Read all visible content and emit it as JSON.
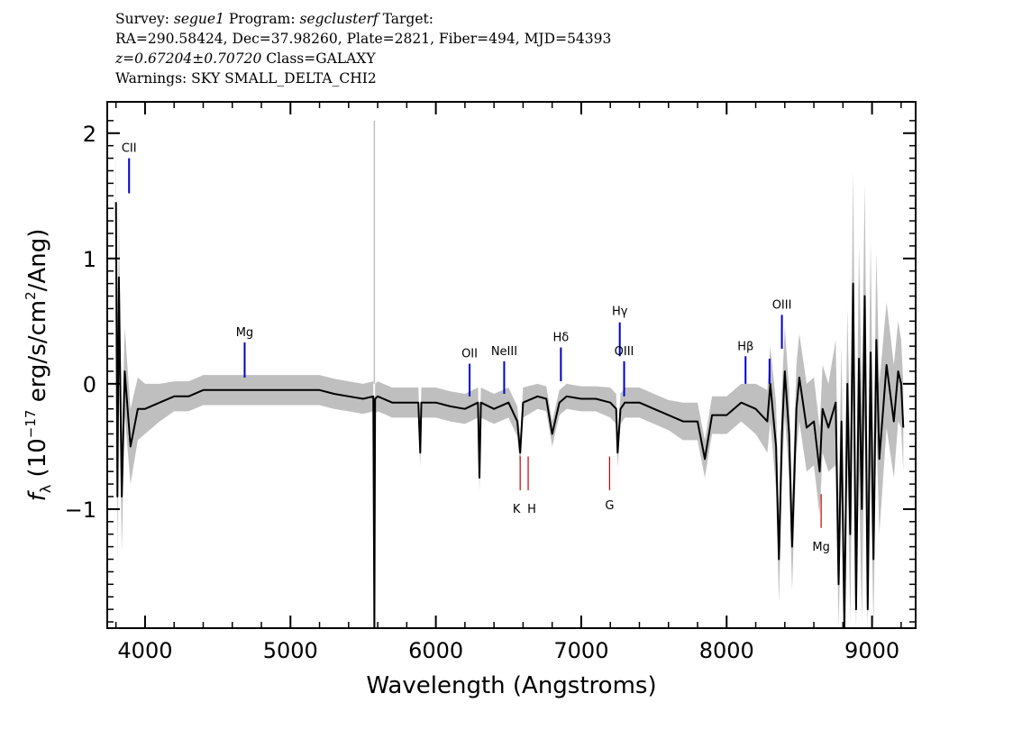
{
  "header": {
    "survey_key": "Survey:",
    "survey": "segue1",
    "program_key": "Program:",
    "program": "segclusterf",
    "target_key": "Target:",
    "coords": "RA=290.58424, Dec=37.98260, Plate=2821, Fiber=494, MJD=54393",
    "redshift": "z=0.67204±0.70720",
    "class_text": "Class=GALAXY",
    "warnings": "Warnings: SKY SMALL_DELTA_CHI2"
  },
  "colors": {
    "flux": "#000000",
    "noise": "#bfbfbf",
    "emission": "#0000cc",
    "absorption": "#cc0000"
  },
  "chart_data": {
    "type": "line",
    "xlabel": "Wavelength (Angstroms)",
    "ylabel": "f_λ (10^-17 erg/s/cm²/Ang)",
    "ylabel_parts": {
      "f": "f",
      "sub": "λ",
      "pre": " (10",
      "exp": "−17",
      "mid": " erg/s/cm",
      "exp2": "2",
      "post": "/Ang)"
    },
    "xlim": [
      3740,
      9300
    ],
    "ylim": [
      -1.95,
      2.25
    ],
    "x_ticks": [
      4000,
      5000,
      6000,
      7000,
      8000,
      9000
    ],
    "y_ticks": [
      -1,
      0,
      1,
      2
    ],
    "x_tick_labels": [
      "4000",
      "5000",
      "6000",
      "7000",
      "8000",
      "9000"
    ],
    "y_tick_labels": [
      "−1",
      "0",
      "1",
      "2"
    ],
    "grid": false,
    "series": [
      {
        "role": "flux",
        "x": [
          3800,
          3810,
          3820,
          3840,
          3860,
          3900,
          3950,
          4000,
          4100,
          4200,
          4300,
          4400,
          4500,
          4600,
          4700,
          4800,
          4900,
          5000,
          5100,
          5200,
          5300,
          5400,
          5500,
          5570,
          5577,
          5582,
          5600,
          5700,
          5800,
          5880,
          5893,
          5900,
          6000,
          6100,
          6200,
          6290,
          6300,
          6310,
          6400,
          6500,
          6560,
          6580,
          6600,
          6700,
          6760,
          6800,
          6850,
          6900,
          7000,
          7100,
          7200,
          7240,
          7250,
          7270,
          7300,
          7400,
          7500,
          7600,
          7700,
          7800,
          7850,
          7900,
          8000,
          8100,
          8200,
          8280,
          8300,
          8340,
          8360,
          8380,
          8400,
          8430,
          8450,
          8480,
          8500,
          8550,
          8600,
          8640,
          8660,
          8700,
          8750,
          8770,
          8790,
          8810,
          8830,
          8850,
          8870,
          8890,
          8910,
          8930,
          8950,
          8970,
          8990,
          9010,
          9030,
          9050,
          9100,
          9150,
          9180,
          9200,
          9215
        ],
        "y": [
          1.45,
          -0.9,
          0.85,
          -0.9,
          0.1,
          -0.5,
          -0.2,
          -0.2,
          -0.15,
          -0.1,
          -0.1,
          -0.05,
          -0.05,
          -0.05,
          -0.05,
          -0.05,
          -0.05,
          -0.05,
          -0.05,
          -0.05,
          -0.08,
          -0.1,
          -0.12,
          -0.1,
          -2.0,
          -0.12,
          -0.1,
          -0.15,
          -0.15,
          -0.15,
          -0.55,
          -0.15,
          -0.15,
          -0.18,
          -0.2,
          -0.15,
          -0.75,
          -0.15,
          -0.2,
          -0.15,
          -0.3,
          -0.55,
          -0.15,
          -0.1,
          -0.12,
          -0.4,
          -0.15,
          -0.1,
          -0.12,
          -0.12,
          -0.15,
          -0.2,
          -0.55,
          -0.2,
          -0.15,
          -0.15,
          -0.2,
          -0.25,
          -0.3,
          -0.3,
          -0.6,
          -0.25,
          -0.25,
          -0.15,
          -0.2,
          -0.3,
          0.0,
          -0.5,
          -1.4,
          -0.4,
          0.1,
          -0.4,
          -1.3,
          -0.2,
          0.05,
          -0.35,
          -0.3,
          -0.7,
          -0.2,
          -0.35,
          -0.15,
          -1.6,
          -0.3,
          -2.0,
          0.0,
          -1.2,
          0.8,
          -1.8,
          0.2,
          -1.0,
          0.7,
          -1.8,
          0.25,
          -1.4,
          0.35,
          -0.6,
          0.15,
          -0.3,
          0.1,
          0.0,
          -0.35
        ]
      }
    ],
    "noise_band_halfwidth": [
      0.55,
      0.55,
      0.55,
      0.45,
      0.35,
      0.3,
      0.25,
      0.2,
      0.15,
      0.12,
      0.12,
      0.12,
      0.12,
      0.12,
      0.12,
      0.12,
      0.12,
      0.12,
      0.12,
      0.12,
      0.12,
      0.12,
      0.12,
      0.12,
      0.12,
      0.12,
      0.12,
      0.12,
      0.12,
      0.12,
      0.12,
      0.12,
      0.12,
      0.12,
      0.12,
      0.12,
      0.12,
      0.12,
      0.12,
      0.12,
      0.12,
      0.12,
      0.12,
      0.1,
      0.1,
      0.1,
      0.1,
      0.1,
      0.1,
      0.1,
      0.12,
      0.12,
      0.12,
      0.12,
      0.12,
      0.12,
      0.12,
      0.12,
      0.15,
      0.15,
      0.15,
      0.15,
      0.15,
      0.15,
      0.2,
      0.25,
      0.3,
      0.35,
      0.35,
      0.35,
      0.35,
      0.35,
      0.35,
      0.35,
      0.35,
      0.35,
      0.35,
      0.35,
      0.35,
      0.35,
      0.5,
      0.6,
      0.6,
      0.6,
      0.6,
      0.7,
      0.9,
      0.9,
      0.9,
      0.9,
      0.9,
      0.9,
      0.9,
      0.8,
      0.7,
      0.6,
      0.5,
      0.45,
      0.4,
      0.35,
      0.35
    ],
    "annotations": [
      {
        "label": "CII",
        "kind": "emission",
        "x": 3890,
        "y0": 1.52,
        "y1": 1.8,
        "label_y": 1.85
      },
      {
        "label": "Mg",
        "kind": "emission",
        "x": 4685,
        "y0": 0.05,
        "y1": 0.33,
        "label_y": 0.38
      },
      {
        "label": "OII",
        "kind": "emission",
        "x": 6232,
        "y0": -0.1,
        "y1": 0.16,
        "label_y": 0.21
      },
      {
        "label": "NeIII",
        "kind": "emission",
        "x": 6470,
        "y0": -0.08,
        "y1": 0.18,
        "label_y": 0.23
      },
      {
        "label": "Hδ",
        "kind": "emission",
        "x": 6860,
        "y0": 0.02,
        "y1": 0.29,
        "label_y": 0.34
      },
      {
        "label": "Hγ",
        "kind": "emission",
        "x": 7265,
        "y0": 0.22,
        "y1": 0.49,
        "label_y": 0.55
      },
      {
        "label": "OIII",
        "kind": "emission",
        "x": 7295,
        "y0": -0.1,
        "y1": 0.18,
        "label_y": 0.23
      },
      {
        "label": "Hβ",
        "kind": "emission",
        "x": 8130,
        "y0": 0.0,
        "y1": 0.22,
        "label_y": 0.27
      },
      {
        "label": "",
        "kind": "emission",
        "x": 8295,
        "y0": 0.0,
        "y1": 0.2,
        "label_y": 0.25
      },
      {
        "label": "OIII",
        "kind": "emission",
        "x": 8380,
        "y0": 0.28,
        "y1": 0.55,
        "label_y": 0.6
      },
      {
        "label": "K",
        "kind": "absorption",
        "x": 6580,
        "y0": -0.58,
        "y1": -0.85,
        "label_y": -1.03
      },
      {
        "label": "H",
        "kind": "absorption",
        "x": 6635,
        "y0": -0.58,
        "y1": -0.85,
        "label_y": -1.03
      },
      {
        "label": "G",
        "kind": "absorption",
        "x": 7195,
        "y0": -0.58,
        "y1": -0.85,
        "label_y": -1.0
      },
      {
        "label": "Mg",
        "kind": "absorption",
        "x": 8650,
        "y0": -0.88,
        "y1": -1.15,
        "label_y": -1.33
      }
    ]
  }
}
